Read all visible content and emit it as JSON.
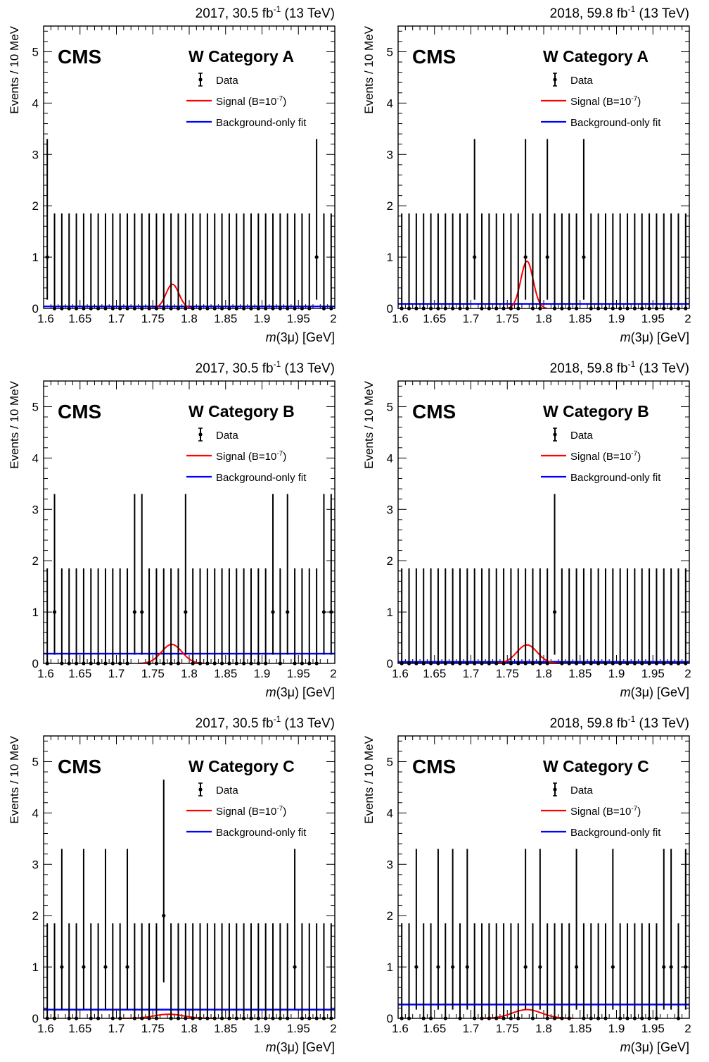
{
  "chart_data": [
    {
      "type": "scatter",
      "header": {
        "prefix": "2017, 30.5 fb",
        "exp": "-1",
        "suffix": " (13 TeV)"
      },
      "cms_label": "CMS",
      "category": "W Category A",
      "xlabel": {
        "italic": "m",
        "rest": "(3μ) [GeV]"
      },
      "ylabel": "Events / 10 MeV",
      "xlim": [
        1.6,
        2.0
      ],
      "ylim": [
        0,
        5.5
      ],
      "x_ticks": [
        "1.6",
        "1.65",
        "1.7",
        "1.75",
        "1.8",
        "1.85",
        "1.9",
        "1.95",
        "2"
      ],
      "y_ticks": [
        "0",
        "1",
        "2",
        "3",
        "4",
        "5"
      ],
      "legend": [
        {
          "name": "Data",
          "kind": "data"
        },
        {
          "name": "Signal (B=10",
          "exp": "-7",
          "suffix": ")",
          "kind": "signal"
        },
        {
          "name": "Background-only fit",
          "kind": "background"
        }
      ],
      "data_points": {
        "bin_width": 0.01,
        "x_start": 1.605,
        "counts": [
          1,
          0,
          0,
          0,
          0,
          0,
          0,
          0,
          0,
          0,
          0,
          0,
          0,
          0,
          0,
          0,
          0,
          0,
          0,
          0,
          0,
          0,
          0,
          0,
          0,
          0,
          0,
          0,
          0,
          0,
          0,
          0,
          0,
          0,
          0,
          0,
          0,
          1,
          0,
          0
        ]
      },
      "signal": {
        "mean": 1.777,
        "sigma": 0.009,
        "peak": 0.47
      },
      "background": 0.04
    },
    {
      "type": "scatter",
      "header": {
        "prefix": "2018, 59.8 fb",
        "exp": "-1",
        "suffix": " (13 TeV)"
      },
      "cms_label": "CMS",
      "category": "W Category A",
      "xlabel": {
        "italic": "m",
        "rest": "(3μ) [GeV]"
      },
      "ylabel": "Events / 10 MeV",
      "xlim": [
        1.6,
        2.0
      ],
      "ylim": [
        0,
        5.5
      ],
      "x_ticks": [
        "1.6",
        "1.65",
        "1.7",
        "1.75",
        "1.8",
        "1.85",
        "1.9",
        "1.95",
        "2"
      ],
      "y_ticks": [
        "0",
        "1",
        "2",
        "3",
        "4",
        "5"
      ],
      "legend": [
        {
          "name": "Data",
          "kind": "data"
        },
        {
          "name": "Signal (B=10",
          "exp": "-7",
          "suffix": ")",
          "kind": "signal"
        },
        {
          "name": "Background-only fit",
          "kind": "background"
        }
      ],
      "data_points": {
        "bin_width": 0.01,
        "x_start": 1.605,
        "counts": [
          0,
          0,
          0,
          0,
          0,
          0,
          0,
          0,
          0,
          0,
          1,
          0,
          0,
          0,
          0,
          0,
          0,
          1,
          0,
          0,
          1,
          0,
          0,
          0,
          0,
          1,
          0,
          0,
          0,
          0,
          0,
          0,
          0,
          0,
          0,
          0,
          0,
          0,
          0,
          0
        ]
      },
      "signal": {
        "mean": 1.777,
        "sigma": 0.0085,
        "peak": 0.92
      },
      "background": 0.09
    },
    {
      "type": "scatter",
      "header": {
        "prefix": "2017, 30.5 fb",
        "exp": "-1",
        "suffix": " (13 TeV)"
      },
      "cms_label": "CMS",
      "category": "W Category B",
      "xlabel": {
        "italic": "m",
        "rest": "(3μ) [GeV]"
      },
      "ylabel": "Events / 10 MeV",
      "xlim": [
        1.6,
        2.0
      ],
      "ylim": [
        0,
        5.5
      ],
      "x_ticks": [
        "1.6",
        "1.65",
        "1.7",
        "1.75",
        "1.8",
        "1.85",
        "1.9",
        "1.95",
        "2"
      ],
      "y_ticks": [
        "0",
        "1",
        "2",
        "3",
        "4",
        "5"
      ],
      "legend": [
        {
          "name": "Data",
          "kind": "data"
        },
        {
          "name": "Signal (B=10",
          "exp": "-7",
          "suffix": ")",
          "kind": "signal"
        },
        {
          "name": "Background-only fit",
          "kind": "background"
        }
      ],
      "data_points": {
        "bin_width": 0.01,
        "x_start": 1.605,
        "counts": [
          0,
          1,
          0,
          0,
          0,
          0,
          0,
          0,
          0,
          0,
          0,
          0,
          1,
          1,
          0,
          0,
          0,
          0,
          0,
          1,
          0,
          0,
          0,
          0,
          0,
          0,
          0,
          0,
          0,
          0,
          0,
          1,
          0,
          1,
          0,
          0,
          0,
          0,
          1,
          1
        ]
      },
      "signal": {
        "mean": 1.776,
        "sigma": 0.014,
        "peak": 0.37
      },
      "background": 0.19
    },
    {
      "type": "scatter",
      "header": {
        "prefix": "2018, 59.8 fb",
        "exp": "-1",
        "suffix": " (13 TeV)"
      },
      "cms_label": "CMS",
      "category": "W Category B",
      "xlabel": {
        "italic": "m",
        "rest": "(3μ) [GeV]"
      },
      "ylabel": "Events / 10 MeV",
      "xlim": [
        1.6,
        2.0
      ],
      "ylim": [
        0,
        5.5
      ],
      "x_ticks": [
        "1.6",
        "1.65",
        "1.7",
        "1.75",
        "1.8",
        "1.85",
        "1.9",
        "1.95",
        "2"
      ],
      "y_ticks": [
        "0",
        "1",
        "2",
        "3",
        "4",
        "5"
      ],
      "legend": [
        {
          "name": "Data",
          "kind": "data"
        },
        {
          "name": "Signal (B=10",
          "exp": "-7",
          "suffix": ")",
          "kind": "signal"
        },
        {
          "name": "Background-only fit",
          "kind": "background"
        }
      ],
      "data_points": {
        "bin_width": 0.01,
        "x_start": 1.605,
        "counts": [
          0,
          0,
          0,
          0,
          0,
          0,
          0,
          0,
          0,
          0,
          0,
          0,
          0,
          0,
          0,
          0,
          0,
          0,
          0,
          0,
          0,
          1,
          0,
          0,
          0,
          0,
          0,
          0,
          0,
          0,
          0,
          0,
          0,
          0,
          0,
          0,
          0,
          0,
          0,
          0
        ]
      },
      "signal": {
        "mean": 1.777,
        "sigma": 0.014,
        "peak": 0.36
      },
      "background": 0.03
    },
    {
      "type": "scatter",
      "header": {
        "prefix": "2017, 30.5 fb",
        "exp": "-1",
        "suffix": " (13 TeV)"
      },
      "cms_label": "CMS",
      "category": "W Category C",
      "xlabel": {
        "italic": "m",
        "rest": "(3μ) [GeV]"
      },
      "ylabel": "Events / 10 MeV",
      "xlim": [
        1.6,
        2.0
      ],
      "ylim": [
        0,
        5.5
      ],
      "x_ticks": [
        "1.6",
        "1.65",
        "1.7",
        "1.75",
        "1.8",
        "1.85",
        "1.9",
        "1.95",
        "2"
      ],
      "y_ticks": [
        "0",
        "1",
        "2",
        "3",
        "4",
        "5"
      ],
      "legend": [
        {
          "name": "Data",
          "kind": "data"
        },
        {
          "name": "Signal (B=10",
          "exp": "-7",
          "suffix": ")",
          "kind": "signal"
        },
        {
          "name": "Background-only fit",
          "kind": "background"
        }
      ],
      "data_points": {
        "bin_width": 0.01,
        "x_start": 1.605,
        "counts": [
          0,
          0,
          1,
          0,
          0,
          1,
          0,
          0,
          1,
          0,
          0,
          1,
          0,
          0,
          0,
          0,
          2,
          0,
          0,
          0,
          0,
          0,
          0,
          0,
          0,
          0,
          0,
          0,
          0,
          0,
          0,
          0,
          0,
          0,
          1,
          0,
          0,
          0,
          0,
          0
        ]
      },
      "signal": {
        "mean": 1.772,
        "sigma": 0.02,
        "peak": 0.08
      },
      "background": 0.17
    },
    {
      "type": "scatter",
      "header": {
        "prefix": "2018, 59.8 fb",
        "exp": "-1",
        "suffix": " (13 TeV)"
      },
      "cms_label": "CMS",
      "category": "W Category C",
      "xlabel": {
        "italic": "m",
        "rest": "(3μ) [GeV]"
      },
      "ylabel": "Events / 10 MeV",
      "xlim": [
        1.6,
        2.0
      ],
      "ylim": [
        0,
        5.5
      ],
      "x_ticks": [
        "1.6",
        "1.65",
        "1.7",
        "1.75",
        "1.8",
        "1.85",
        "1.9",
        "1.95",
        "2"
      ],
      "y_ticks": [
        "0",
        "1",
        "2",
        "3",
        "4",
        "5"
      ],
      "legend": [
        {
          "name": "Data",
          "kind": "data"
        },
        {
          "name": "Signal (B=10",
          "exp": "-7",
          "suffix": ")",
          "kind": "signal"
        },
        {
          "name": "Background-only fit",
          "kind": "background"
        }
      ],
      "data_points": {
        "bin_width": 0.01,
        "x_start": 1.605,
        "counts": [
          0,
          0,
          1,
          0,
          0,
          1,
          0,
          1,
          0,
          1,
          0,
          0,
          0,
          0,
          0,
          0,
          0,
          1,
          0,
          1,
          0,
          0,
          0,
          0,
          1,
          0,
          0,
          0,
          0,
          1,
          0,
          0,
          0,
          0,
          0,
          0,
          1,
          1,
          0,
          1
        ]
      },
      "signal": {
        "mean": 1.777,
        "sigma": 0.02,
        "peak": 0.17
      },
      "background": 0.27
    }
  ],
  "colors": {
    "signal": "#ff0000",
    "background": "#0000ff",
    "data": "#000000"
  }
}
